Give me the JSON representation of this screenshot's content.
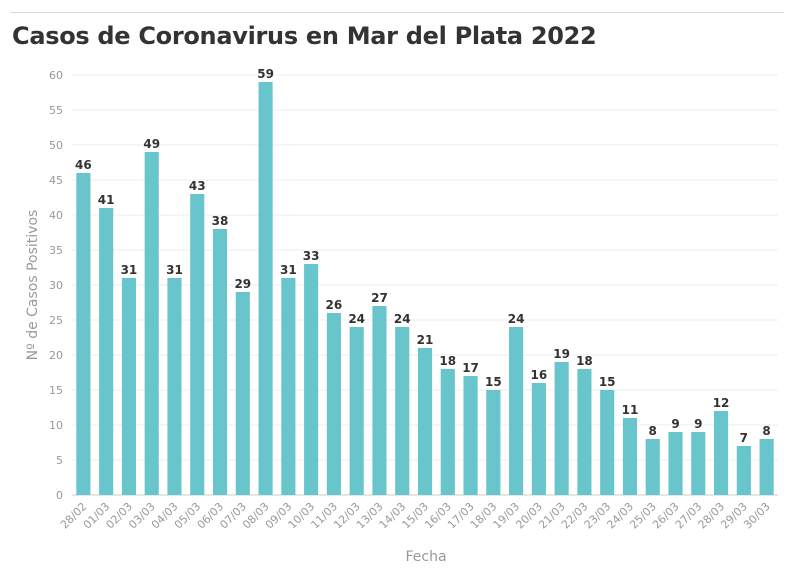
{
  "chart_data": {
    "type": "bar",
    "title": "Casos de Coronavirus en Mar del Plata 2022",
    "xlabel": "Fecha",
    "ylabel": "Nº de Casos Positivos",
    "ylim": [
      0,
      60
    ],
    "yticks": [
      0,
      5,
      10,
      15,
      20,
      25,
      30,
      35,
      40,
      45,
      50,
      55,
      60
    ],
    "grid": true,
    "categories": [
      "28/02",
      "01/03",
      "02/03",
      "03/03",
      "04/03",
      "05/03",
      "06/03",
      "07/03",
      "08/03",
      "09/03",
      "10/03",
      "11/03",
      "12/03",
      "13/03",
      "14/03",
      "15/03",
      "16/03",
      "17/03",
      "18/03",
      "19/03",
      "20/03",
      "21/03",
      "22/03",
      "23/03",
      "24/03",
      "25/03",
      "26/03",
      "27/03",
      "28/03",
      "29/03",
      "30/03"
    ],
    "values": [
      46,
      41,
      31,
      49,
      31,
      43,
      38,
      29,
      59,
      31,
      33,
      26,
      24,
      27,
      24,
      21,
      18,
      17,
      15,
      24,
      16,
      19,
      18,
      15,
      11,
      8,
      9,
      9,
      12,
      7,
      8
    ],
    "bar_color": "#67c5cb"
  }
}
